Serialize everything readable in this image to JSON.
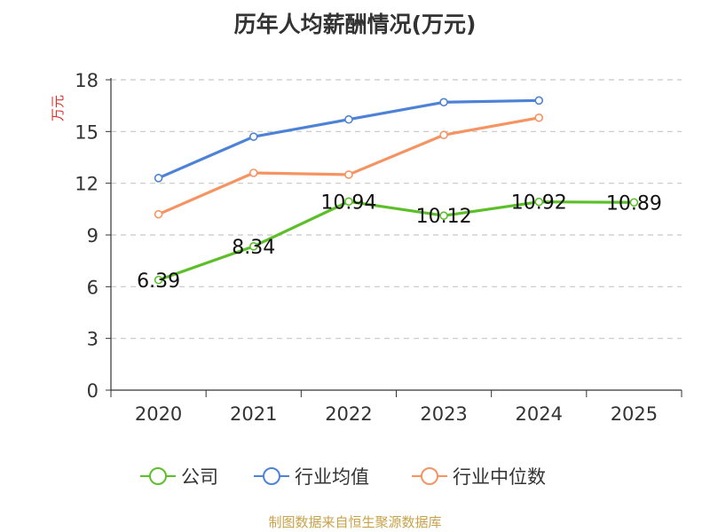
{
  "title": "历年人均薪酬情况(万元)",
  "source": "制图数据来自恒生聚源数据库",
  "chart_data": {
    "type": "line",
    "title": "历年人均薪酬情况(万元)",
    "xlabel": "",
    "ylabel": "万元",
    "categories": [
      "2020",
      "2021",
      "2022",
      "2023",
      "2024",
      "2025"
    ],
    "ylim": [
      0,
      18
    ],
    "yticks": [
      0,
      3,
      6,
      9,
      12,
      15,
      18
    ],
    "grid": true,
    "legend_position": "bottom",
    "series": [
      {
        "name": "公司",
        "color": "#5cbf2a",
        "values": [
          6.39,
          8.34,
          10.94,
          10.12,
          10.92,
          10.89
        ],
        "labels": [
          "6.39",
          "8.34",
          "10.94",
          "10.12",
          "10.92",
          "10.89"
        ]
      },
      {
        "name": "行业均值",
        "color": "#4e82d6",
        "values": [
          12.3,
          14.7,
          15.7,
          16.7,
          16.8,
          null
        ]
      },
      {
        "name": "行业中位数",
        "color": "#f59462",
        "values": [
          10.2,
          12.6,
          12.5,
          14.8,
          15.8,
          null
        ]
      }
    ]
  }
}
